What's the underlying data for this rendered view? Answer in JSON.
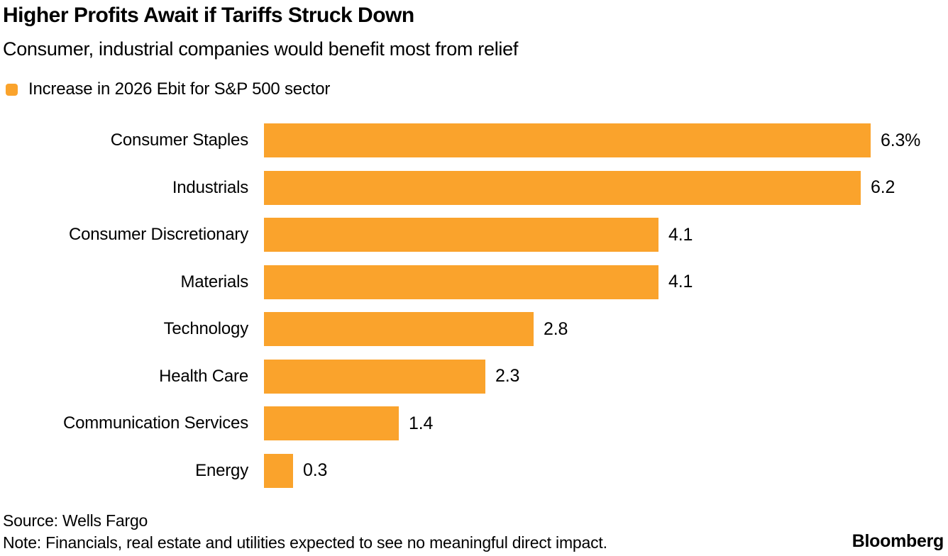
{
  "header": {
    "title": "Higher Profits Await if Tariffs Struck Down",
    "subtitle": "Consumer, industrial companies would benefit most from relief"
  },
  "legend": {
    "label": "Increase in 2026 Ebit for S&P 500 sector",
    "color": "#FAA32C"
  },
  "chart_data": {
    "type": "bar",
    "orientation": "horizontal",
    "title": "Higher Profits Await if Tariffs Struck Down",
    "subtitle": "Consumer, industrial companies would benefit most from relief",
    "legend": [
      "Increase in 2026 Ebit for S&P 500 sector"
    ],
    "legend_position": "top-left",
    "categories": [
      "Consumer Staples",
      "Industrials",
      "Consumer Discretionary",
      "Materials",
      "Technology",
      "Health Care",
      "Communication Services",
      "Energy"
    ],
    "values": [
      6.3,
      6.2,
      4.1,
      4.1,
      2.8,
      2.3,
      1.4,
      0.3
    ],
    "value_labels": [
      "6.3%",
      "6.2",
      "4.1",
      "4.1",
      "2.8",
      "2.3",
      "1.4",
      "0.3"
    ],
    "unit": "%",
    "xlim": [
      0,
      6.3
    ],
    "grid": false,
    "bar_color": "#FAA32C"
  },
  "footer": {
    "source": "Source: Wells Fargo",
    "note": "Note: Financials, real estate and utilities expected to see no meaningful direct impact.",
    "brand": "Bloomberg"
  }
}
